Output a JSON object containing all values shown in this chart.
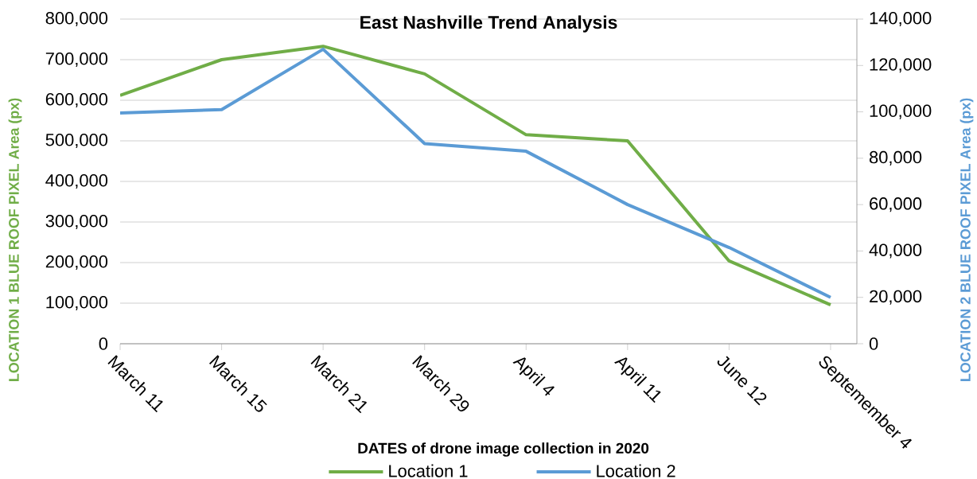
{
  "chart_data": {
    "type": "line",
    "title": "East Nashville Trend Analysis",
    "xlabel": "DATES of drone image collection in 2020",
    "ylabel": "LOCATION 1 BLUE ROOF PIXEL Area (px)",
    "y2label": "LOCATION 2 BLUE ROOF PIXEL Area (px)",
    "categories": [
      "March 11",
      "March 15",
      "March 21",
      "March 29",
      "April 4",
      "April 11",
      "June 12",
      "Septemember 4"
    ],
    "series": [
      {
        "name": "Location 1",
        "color": "#70ad47",
        "axis": "y",
        "values": [
          612000,
          700000,
          733000,
          665000,
          515000,
          500000,
          204000,
          96000
        ]
      },
      {
        "name": "Location 2",
        "color": "#5b9bd5",
        "axis": "y2",
        "values": [
          99500,
          101000,
          127000,
          86300,
          83000,
          60000,
          41500,
          20000
        ]
      }
    ],
    "ylim": [
      0,
      800000
    ],
    "yticks": [
      {
        "value": 0,
        "label": "0"
      },
      {
        "value": 100000,
        "label": "100,000"
      },
      {
        "value": 200000,
        "label": "200,000"
      },
      {
        "value": 300000,
        "label": "300,000"
      },
      {
        "value": 400000,
        "label": "400,000"
      },
      {
        "value": 500000,
        "label": "500,000"
      },
      {
        "value": 600000,
        "label": "600,000"
      },
      {
        "value": 700000,
        "label": "700,000"
      },
      {
        "value": 800000,
        "label": "800,000"
      }
    ],
    "y2lim": [
      0,
      140000
    ],
    "y2ticks": [
      {
        "value": 0,
        "label": "0"
      },
      {
        "value": 20000,
        "label": "20,000"
      },
      {
        "value": 40000,
        "label": "40,000"
      },
      {
        "value": 60000,
        "label": "60,000"
      },
      {
        "value": 80000,
        "label": "80,000"
      },
      {
        "value": 100000,
        "label": "100,000"
      },
      {
        "value": 120000,
        "label": "120,000"
      },
      {
        "value": 140000,
        "label": "140,000"
      }
    ],
    "grid": "y",
    "legend": "bottom"
  }
}
